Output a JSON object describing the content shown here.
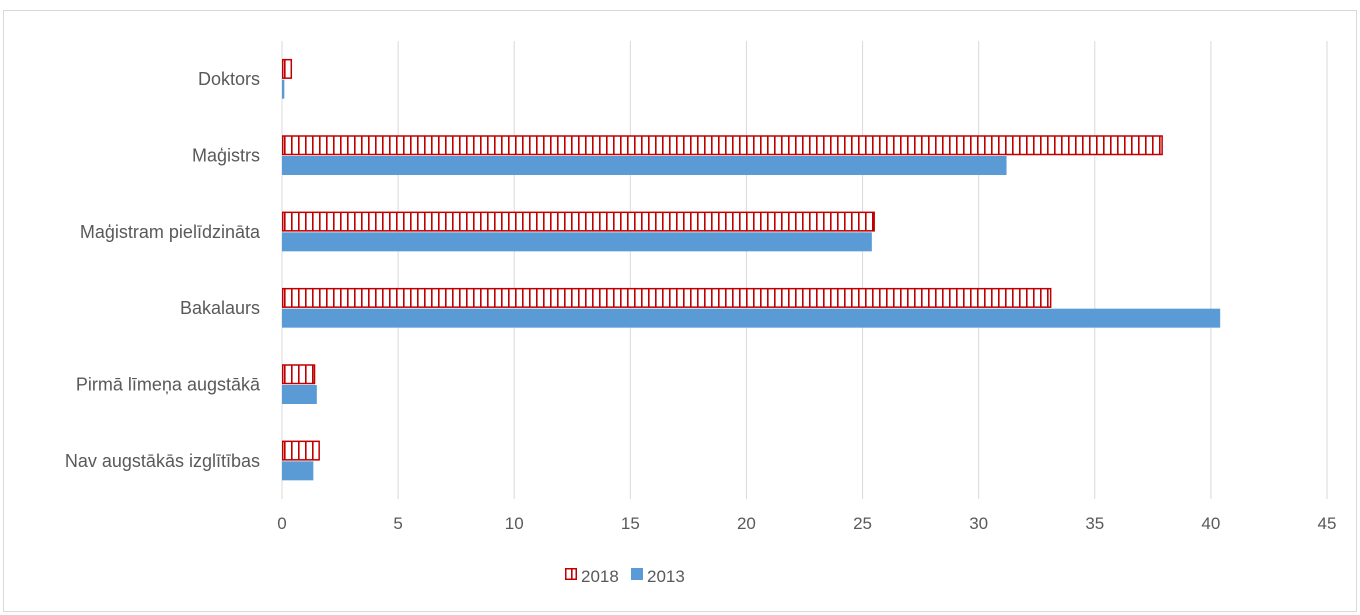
{
  "chart_data": {
    "type": "bar",
    "orientation": "horizontal",
    "categories": [
      "Doktors",
      "Maģistrs",
      "Maģistram pielīdzināta",
      "Bakalaurs",
      "Pirmā līmeņa augstākā",
      "Nav augstākās izglītības"
    ],
    "series": [
      {
        "name": "2018",
        "values": [
          0.4,
          37.9,
          25.5,
          33.1,
          1.4,
          1.6
        ],
        "color": "#c00000",
        "fill": "vertical-stripes"
      },
      {
        "name": "2013",
        "values": [
          0.1,
          31.2,
          25.4,
          40.4,
          1.5,
          1.35
        ],
        "color": "#5b9bd5",
        "fill": "solid"
      }
    ],
    "x_ticks": [
      "0",
      "5",
      "10",
      "15",
      "20",
      "25",
      "30",
      "35",
      "40",
      "45"
    ],
    "xlim": [
      0,
      45
    ],
    "grid": true,
    "legend_position": "bottom",
    "legend": [
      "2018",
      "2013"
    ]
  }
}
